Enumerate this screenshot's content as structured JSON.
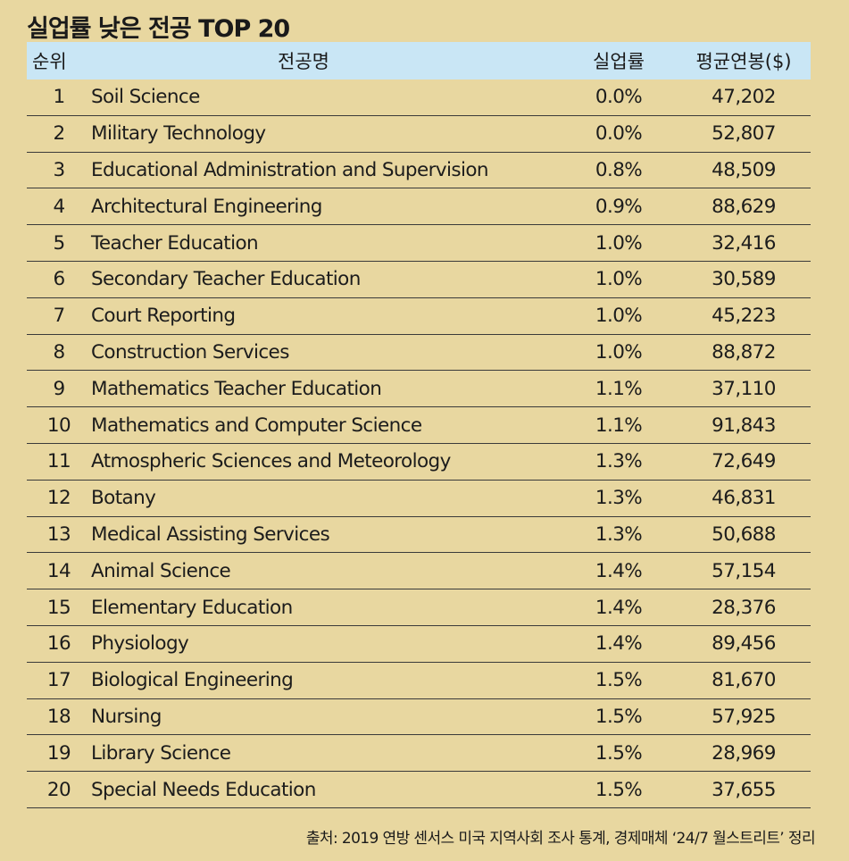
{
  "title": "실업률 낮은 전공 TOP 20",
  "chart_data": {
    "type": "table",
    "title": "실업률 낮은 전공 TOP 20",
    "columns": [
      "순위",
      "전공명",
      "실업률",
      "평균연봉($)"
    ],
    "rows": [
      {
        "rank": "1",
        "major": "Soil Science",
        "rate": "0.0%",
        "salary": "47,202"
      },
      {
        "rank": "2",
        "major": "Military Technology",
        "rate": "0.0%",
        "salary": "52,807"
      },
      {
        "rank": "3",
        "major": "Educational Administration and Supervision",
        "rate": "0.8%",
        "salary": "48,509"
      },
      {
        "rank": "4",
        "major": "Architectural Engineering",
        "rate": "0.9%",
        "salary": "88,629"
      },
      {
        "rank": "5",
        "major": "Teacher Education",
        "rate": "1.0%",
        "salary": "32,416"
      },
      {
        "rank": "6",
        "major": "Secondary Teacher Education",
        "rate": "1.0%",
        "salary": "30,589"
      },
      {
        "rank": "7",
        "major": "Court Reporting",
        "rate": "1.0%",
        "salary": "45,223"
      },
      {
        "rank": "8",
        "major": "Construction Services",
        "rate": "1.0%",
        "salary": "88,872"
      },
      {
        "rank": "9",
        "major": "Mathematics Teacher Education",
        "rate": "1.1%",
        "salary": "37,110"
      },
      {
        "rank": "10",
        "major": "Mathematics and Computer Science",
        "rate": "1.1%",
        "salary": "91,843"
      },
      {
        "rank": "11",
        "major": "Atmospheric Sciences and Meteorology",
        "rate": "1.3%",
        "salary": "72,649"
      },
      {
        "rank": "12",
        "major": "Botany",
        "rate": "1.3%",
        "salary": "46,831"
      },
      {
        "rank": "13",
        "major": "Medical Assisting Services",
        "rate": "1.3%",
        "salary": "50,688"
      },
      {
        "rank": "14",
        "major": "Animal Science",
        "rate": "1.4%",
        "salary": "57,154"
      },
      {
        "rank": "15",
        "major": "Elementary Education",
        "rate": "1.4%",
        "salary": "28,376"
      },
      {
        "rank": "16",
        "major": "Physiology",
        "rate": "1.4%",
        "salary": "89,456"
      },
      {
        "rank": "17",
        "major": "Biological Engineering",
        "rate": "1.5%",
        "salary": "81,670"
      },
      {
        "rank": "18",
        "major": "Nursing",
        "rate": "1.5%",
        "salary": "57,925"
      },
      {
        "rank": "19",
        "major": "Library Science",
        "rate": "1.5%",
        "salary": "28,969"
      },
      {
        "rank": "20",
        "major": "Special Needs Education",
        "rate": "1.5%",
        "salary": "37,655"
      }
    ]
  },
  "source": "출처: 2019 연방 센서스 미국 지역사회 조사 통계, 경제매체 ‘24/7 월스트리트’ 정리",
  "colors": {
    "background": "#e8d7a0",
    "header": "#c9e6f5",
    "rule": "#3a3a3a"
  }
}
